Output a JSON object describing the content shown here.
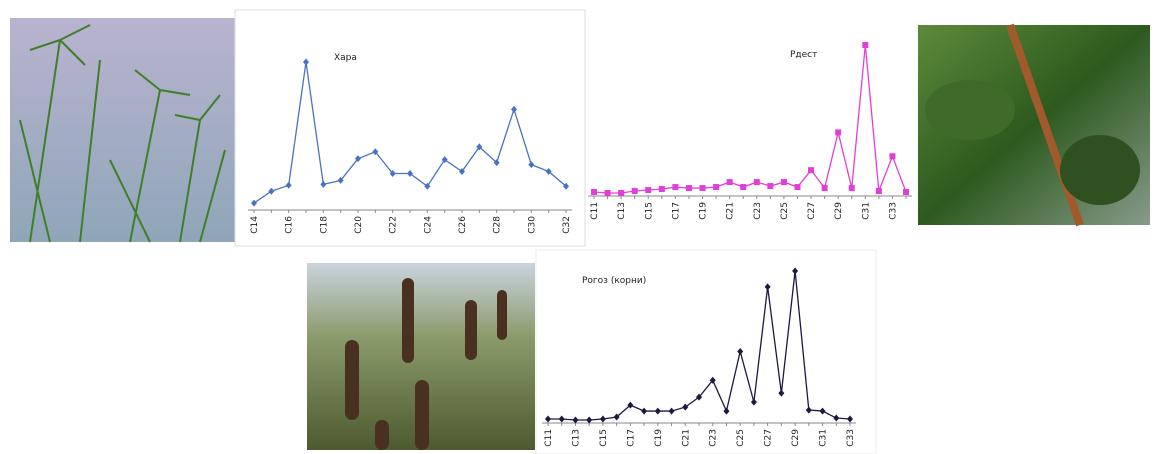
{
  "chart_data": [
    {
      "type": "line",
      "title": "Хара",
      "color": "#4a72c4",
      "marker": "diamond",
      "categories": [
        "C14",
        null,
        "C16",
        null,
        "C18",
        null,
        "C20",
        null,
        "C22",
        null,
        "C24",
        null,
        "C26",
        null,
        "C28",
        null,
        "C30",
        null,
        "C32"
      ],
      "values": [
        5,
        17,
        23,
        148,
        24,
        28,
        50,
        57,
        35,
        35,
        22,
        49,
        37,
        62,
        46,
        100,
        44,
        37,
        22
      ]
    },
    {
      "type": "line",
      "title": "Рдест",
      "color": "#e040d8",
      "marker": "square",
      "categories": [
        "C11",
        null,
        "C13",
        null,
        "C15",
        null,
        "C17",
        null,
        "C19",
        null,
        "C21",
        null,
        "C23",
        null,
        "C25",
        null,
        "C27",
        null,
        "C29",
        null,
        "C31",
        null,
        "C33",
        null
      ],
      "values": [
        2,
        1,
        1,
        3,
        4,
        5,
        7,
        6,
        6,
        7,
        12,
        7,
        12,
        8,
        12,
        7,
        24,
        6,
        62,
        6,
        150,
        3,
        38,
        2
      ]
    },
    {
      "type": "line",
      "title": "Рогоз (корни)",
      "color": "#1a1a40",
      "marker": "diamond",
      "categories": [
        "C11",
        null,
        "C13",
        null,
        "C15",
        null,
        "C17",
        null,
        "C19",
        null,
        "C21",
        null,
        "C23",
        null,
        "C25",
        null,
        "C27",
        null,
        "C29",
        null,
        "C31",
        null,
        "C33"
      ],
      "values": [
        2,
        2,
        1,
        1,
        2,
        4,
        16,
        10,
        10,
        10,
        14,
        24,
        41,
        10,
        70,
        19,
        135,
        28,
        151,
        11,
        10,
        3,
        2
      ]
    }
  ]
}
